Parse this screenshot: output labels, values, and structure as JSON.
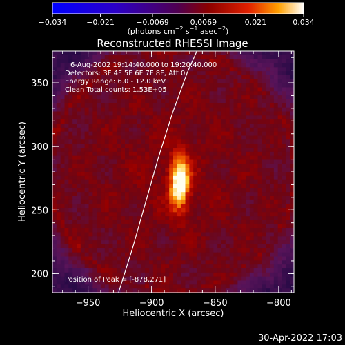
{
  "chart_data": {
    "type": "heatmap",
    "title": "Reconstructed RHESSI Image",
    "xlabel": "Heliocentric X (arcsec)",
    "ylabel": "Heliocentric Y (arcsec)",
    "xlim": [
      -978,
      -788
    ],
    "ylim": [
      185,
      375
    ],
    "x_ticks": [
      -950,
      -900,
      -850,
      -800
    ],
    "x_tick_labels": [
      "−950",
      "−900",
      "−850",
      "−800"
    ],
    "y_ticks": [
      200,
      250,
      300,
      350
    ],
    "y_tick_labels": [
      "200",
      "250",
      "300",
      "350"
    ],
    "colorbar": {
      "min": -0.034,
      "max": 0.034,
      "ticks": [
        -0.034,
        -0.021,
        -0.0069,
        0.0069,
        0.021,
        0.034
      ],
      "tick_labels": [
        "−0.034",
        "−0.021",
        "−0.0069",
        "0.0069",
        "0.021",
        "0.034"
      ],
      "unit_label": "(photons cm",
      "unit_exp1": "−2",
      "unit_mid": " s",
      "unit_exp2": "−1",
      "unit_mid2": " asec",
      "unit_exp3": "−2",
      "unit_end": ")"
    },
    "info_lines": [
      "6-Aug-2002 19:14:40.000 to 19:20:40.000",
      "Detectors: 3F 4F 5F 6F 7F 8F, Att 0",
      "Energy Range: 6.0 - 12.0 keV",
      "Clean     Total counts: 1.53E+05"
    ],
    "peak_label": "Position of Peak = [-878,271]",
    "peak": [
      -878,
      271
    ],
    "peak_value": 0.034,
    "limb_curve": [
      [
        -926,
        185
      ],
      [
        -915,
        220
      ],
      [
        -905,
        255
      ],
      [
        -895,
        290
      ],
      [
        -884,
        325
      ],
      [
        -872,
        358
      ],
      [
        -863,
        378
      ]
    ],
    "colors": {
      "limb": "#ffffff",
      "background": "#000000"
    }
  },
  "footer": {
    "timestamp": "30-Apr-2022 17:03"
  }
}
